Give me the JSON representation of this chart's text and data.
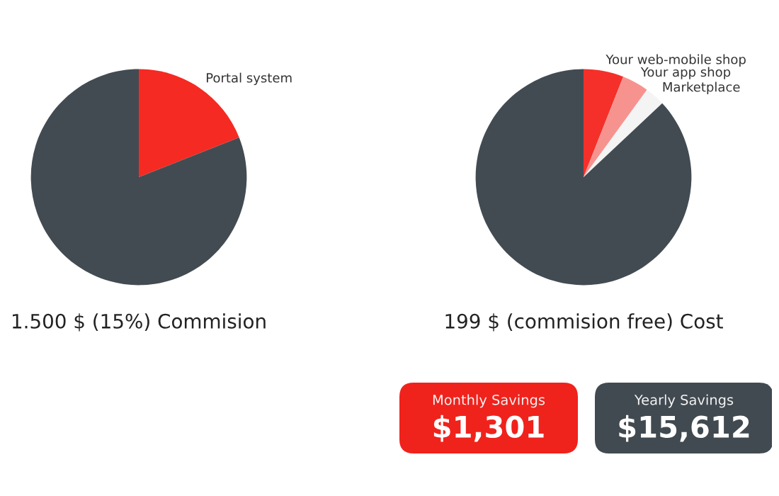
{
  "chart_data": [
    {
      "type": "pie",
      "title": "1.500 $ (15%) Commision",
      "categories": [
        "Portal system",
        null
      ],
      "values": [
        19,
        81
      ],
      "colors": [
        "#f52a22",
        "#434b52"
      ]
    },
    {
      "type": "pie",
      "title": "199 $ (commision free) Cost",
      "categories": [
        "Your web-mobile shop",
        "Your app shop",
        "Marketplace",
        null
      ],
      "values": [
        6,
        4,
        3,
        87
      ],
      "colors": [
        "#f5302a",
        "#f7938f",
        "#f4f4f4",
        "#434b52"
      ]
    },
    {
      "type": "other",
      "annotations": [
        "Monthly Savings",
        "$1,301",
        "Yearly Savings",
        "$15,612"
      ],
      "colors": [
        "#f0221c",
        "#414a51"
      ]
    }
  ]
}
